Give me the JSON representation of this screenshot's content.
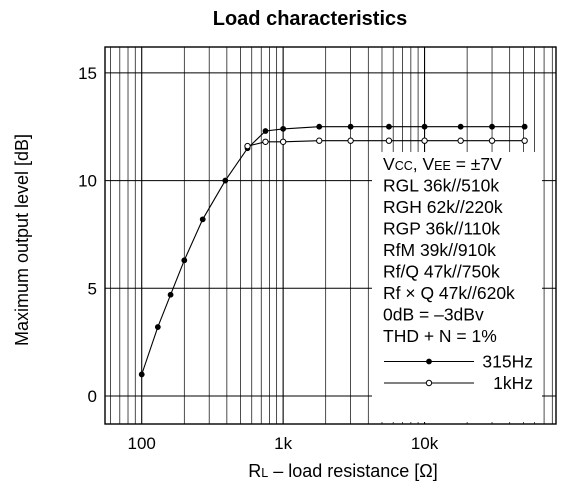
{
  "chart_data": {
    "type": "line",
    "title": "Load characteristics",
    "xlabel": {
      "main": "R",
      "sub": "L",
      "rest": " – load resistance [Ω]"
    },
    "ylabel": "Maximum output level [dB]",
    "x_scale": "log",
    "xlim": [
      55,
      85000
    ],
    "ylim": [
      -1.3,
      16.2
    ],
    "grid": true,
    "x_tick_labels": [
      {
        "value": 100,
        "label": "100"
      },
      {
        "value": 1000,
        "label": "1k"
      },
      {
        "value": 10000,
        "label": "10k"
      }
    ],
    "y_tick_labels": [
      {
        "value": 0,
        "label": "0"
      },
      {
        "value": 5,
        "label": "5"
      },
      {
        "value": 10,
        "label": "10"
      },
      {
        "value": 15,
        "label": "15"
      }
    ],
    "series": [
      {
        "name": "315Hz",
        "marker": "filled",
        "points": [
          [
            100,
            1.0
          ],
          [
            130,
            3.2
          ],
          [
            160,
            4.7
          ],
          [
            200,
            6.3
          ],
          [
            270,
            8.2
          ],
          [
            390,
            10.0
          ],
          [
            560,
            11.5
          ],
          [
            750,
            12.3
          ],
          [
            1000,
            12.4
          ],
          [
            1800,
            12.5
          ],
          [
            3000,
            12.5
          ],
          [
            5600,
            12.5
          ],
          [
            10000,
            12.5
          ],
          [
            18000,
            12.5
          ],
          [
            30000,
            12.5
          ],
          [
            51000,
            12.5
          ]
        ]
      },
      {
        "name": "1kHz",
        "marker": "open",
        "points": [
          [
            560,
            11.6
          ],
          [
            750,
            11.8
          ],
          [
            1000,
            11.8
          ],
          [
            1800,
            11.85
          ],
          [
            3000,
            11.85
          ],
          [
            5600,
            11.85
          ],
          [
            10000,
            11.85
          ],
          [
            18000,
            11.85
          ],
          [
            30000,
            11.85
          ],
          [
            51000,
            11.85
          ]
        ]
      }
    ],
    "notes_legend": "right",
    "notes": [
      [
        {
          "t": "V"
        },
        {
          "t": "CC",
          "sub": true
        },
        {
          "t": ", V"
        },
        {
          "t": "EE",
          "sub": true
        },
        {
          "t": " = ±7V"
        }
      ],
      [
        {
          "t": "RGL 36k//510k"
        }
      ],
      [
        {
          "t": "RGH 62k//220k"
        }
      ],
      [
        {
          "t": "RGP 36k//110k"
        }
      ],
      [
        {
          "t": "RfM 39k//910k"
        }
      ],
      [
        {
          "t": "Rf/Q 47k//750k"
        }
      ],
      [
        {
          "t": "Rf × Q 47k//620k"
        }
      ],
      [
        {
          "t": "0dB = –3dBv"
        }
      ],
      [
        {
          "t": "THD + N = 1%"
        }
      ]
    ]
  }
}
